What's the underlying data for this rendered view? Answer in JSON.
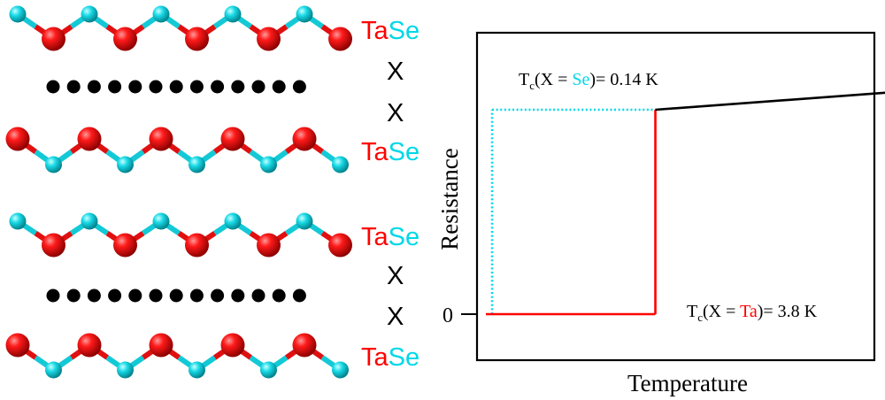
{
  "colors": {
    "ta": "#ff0000",
    "se": "#00d8e8",
    "ta_dark": "#9a0000",
    "se_dark": "#008c96",
    "bond_ta": "#e01010",
    "bond_se": "#14c9d6",
    "dot": "#000000",
    "normal_line": "#000000",
    "ta_transition": "#ff0000",
    "se_transition": "#00d8e8"
  },
  "structure": {
    "layers": [
      {
        "kind": "chain",
        "phase": "se-top",
        "label_ta": "Ta",
        "label_se": "Se"
      },
      {
        "kind": "spacer",
        "label": "X"
      },
      {
        "kind": "dots"
      },
      {
        "kind": "spacer",
        "label": "X"
      },
      {
        "kind": "chain",
        "phase": "ta-top",
        "label_ta": "Ta",
        "label_se": "Se"
      },
      {
        "kind": "chain",
        "phase": "se-top",
        "label_ta": "Ta",
        "label_se": "Se"
      },
      {
        "kind": "spacer",
        "label": "X"
      },
      {
        "kind": "dots"
      },
      {
        "kind": "spacer",
        "label": "X"
      },
      {
        "kind": "chain",
        "phase": "ta-top",
        "label_ta": "Ta",
        "label_se": "Se"
      }
    ]
  },
  "chart": {
    "ylabel": "Resistance",
    "xlabel": "Temperature",
    "zero_tick": "0",
    "annotation_se": {
      "pre": "T",
      "sub": "c",
      "mid": "(X = ",
      "hl": "Se",
      "post": ")= 0.14 K"
    },
    "annotation_ta": {
      "pre": "T",
      "sub": "c",
      "mid": "(X = ",
      "hl": "Ta",
      "post": ")= 3.8 K"
    }
  },
  "chart_data": {
    "type": "line",
    "xlabel": "Temperature",
    "ylabel": "Resistance",
    "series": [
      {
        "points": [
          [
            0,
            0
          ],
          [
            3.8,
            0
          ],
          [
            3.8,
            1
          ],
          [
            10,
            1.1
          ]
        ],
        "color": "#ff0000",
        "style": "solid"
      },
      {
        "points": [
          [
            0.14,
            0
          ],
          [
            0.14,
            1
          ],
          [
            3.8,
            1
          ]
        ],
        "color": "#00d8e8",
        "style": "dotted"
      }
    ]
  }
}
